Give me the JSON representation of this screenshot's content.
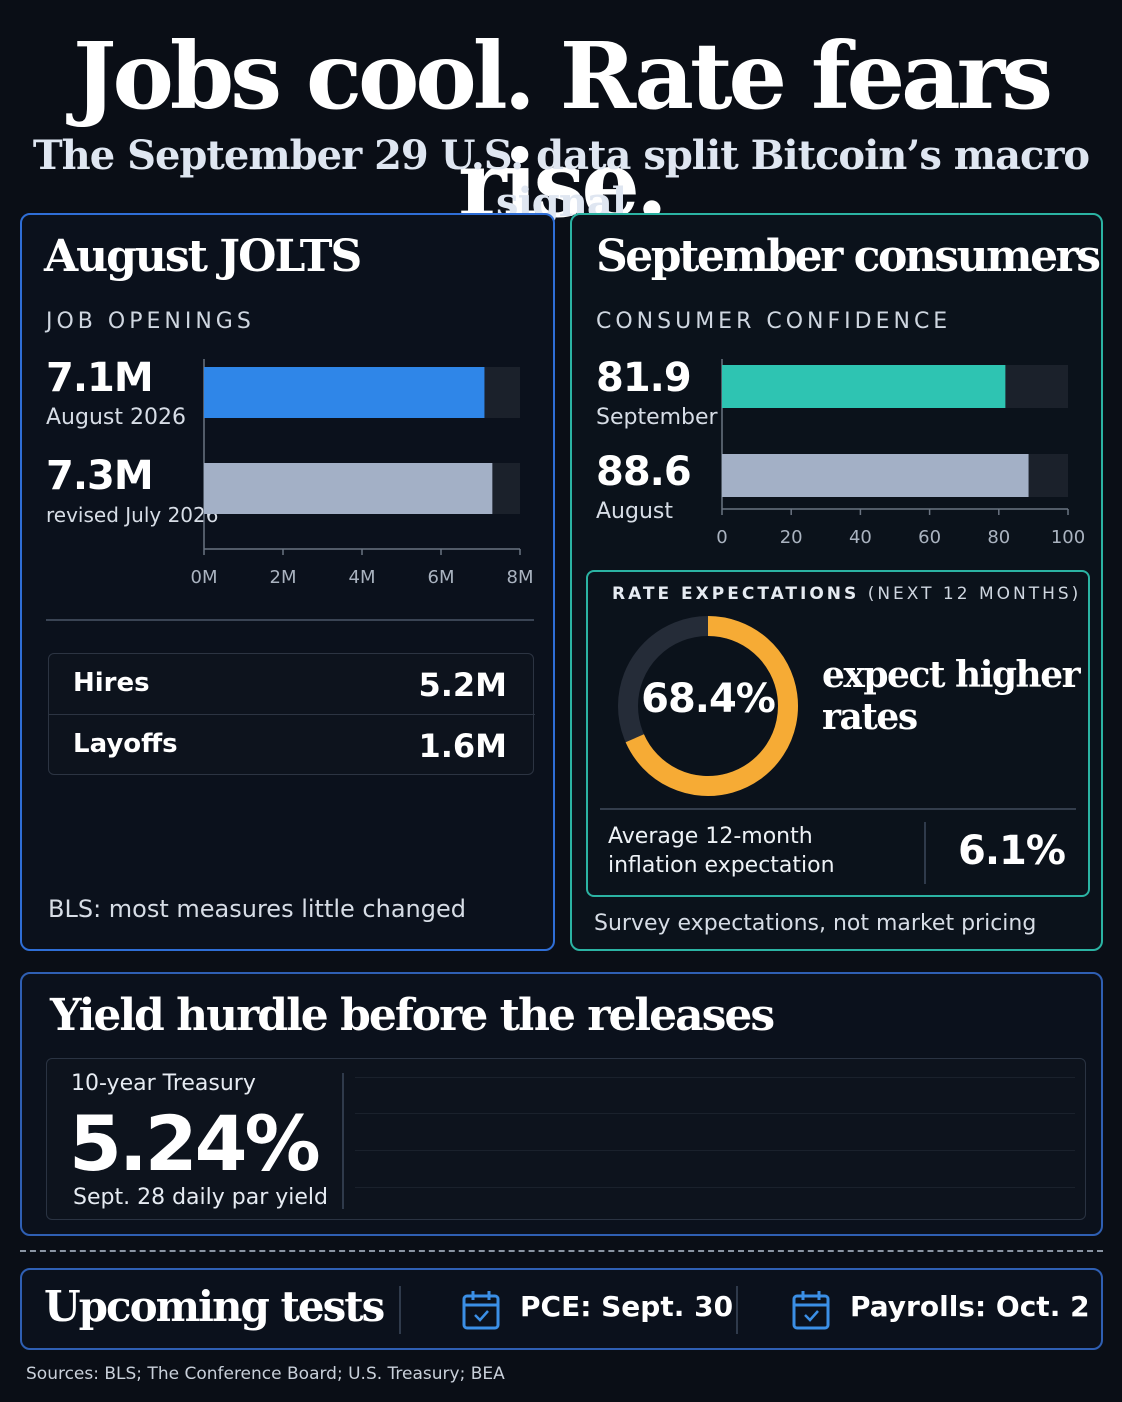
{
  "header": {
    "title": "Jobs cool. Rate fears rise.",
    "subtitle": "The September 29 U.S. data split Bitcoin’s macro signal"
  },
  "jolts": {
    "title": "August JOLTS",
    "label": "JOB OPENINGS",
    "bars": [
      {
        "value_text": "7.1M",
        "label": "August 2026"
      },
      {
        "value_text": "7.3M",
        "label": "revised July 2026"
      }
    ],
    "ticks": [
      "0M",
      "2M",
      "4M",
      "6M",
      "8M"
    ],
    "flows": [
      {
        "label": "Hires",
        "value": "5.2M"
      },
      {
        "label": "Layoffs",
        "value": "1.6M"
      }
    ],
    "note": "BLS: most measures little changed"
  },
  "consumers": {
    "title": "September consumers",
    "label": "CONSUMER CONFIDENCE",
    "bars": [
      {
        "value_text": "81.9",
        "label": "September"
      },
      {
        "value_text": "88.6",
        "label": "August"
      }
    ],
    "ticks": [
      "0",
      "20",
      "40",
      "60",
      "80",
      "100"
    ],
    "rate": {
      "label_main": "RATE EXPECTATIONS",
      "label_paren": "(NEXT 12 MONTHS)",
      "percent_text": "68.4%",
      "caption": "expect higher rates",
      "inflation_label": "Average 12-month inflation expectation",
      "inflation_value": "6.1%"
    },
    "note": "Survey expectations, not market pricing"
  },
  "yield": {
    "title": "Yield hurdle  before the releases",
    "label": "10-year Treasury",
    "value": "5.24%",
    "caption": "Sept. 28 daily par yield"
  },
  "upcoming": {
    "title": "Upcoming tests",
    "items": [
      {
        "icon": "calendar-icon",
        "label": "PCE: Sept. 30"
      },
      {
        "icon": "calendar-icon",
        "label": "Payrolls: Oct. 2"
      }
    ]
  },
  "sources": "Sources: BLS; The Conference Board; U.S. Treasury; BEA",
  "colors": {
    "jolts_accent": "#2f86e8",
    "consumer_accent": "#2ec4b2",
    "prior_bar": "#a3b0c6",
    "track": "#1b212b",
    "donut": "#f6ab35",
    "donut_track": "#252c38",
    "calendar": "#3b8fe6"
  },
  "chart_data": [
    {
      "type": "bar",
      "orientation": "horizontal",
      "title": "JOB OPENINGS",
      "categories": [
        "August 2026",
        "revised July 2026"
      ],
      "values": [
        7.1,
        7.3
      ],
      "unit": "M",
      "xlim": [
        0,
        8
      ]
    },
    {
      "type": "bar",
      "orientation": "horizontal",
      "title": "CONSUMER CONFIDENCE",
      "categories": [
        "September",
        "August"
      ],
      "values": [
        81.9,
        88.6
      ],
      "xlim": [
        0,
        100
      ]
    },
    {
      "type": "pie",
      "title": "RATE EXPECTATIONS (NEXT 12 MONTHS)",
      "categories": [
        "expect higher rates"
      ],
      "values": [
        68.4
      ],
      "unit": "%"
    }
  ]
}
